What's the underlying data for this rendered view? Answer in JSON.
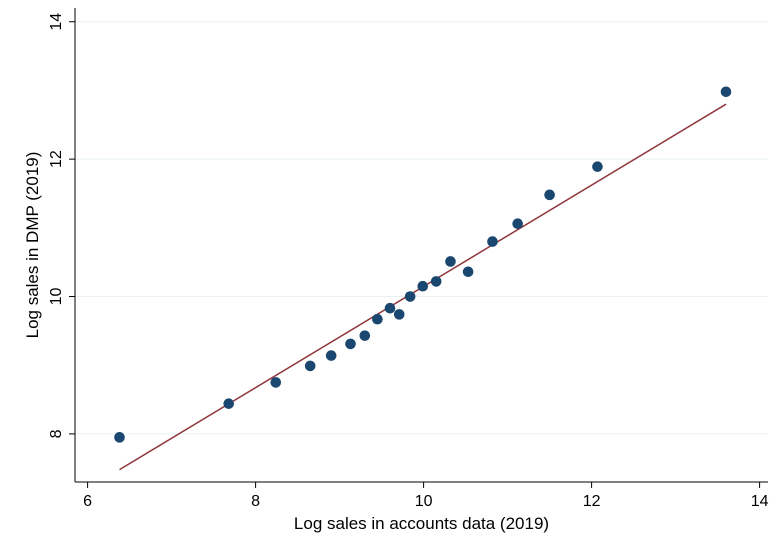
{
  "chart_data": {
    "type": "scatter",
    "title": "",
    "xlabel": "Log sales in accounts data (2019)",
    "ylabel": "Log sales in DMP (2019)",
    "xlim": [
      5.85,
      14.1
    ],
    "ylim": [
      7.3,
      14.2
    ],
    "xticks": [
      6,
      8,
      10,
      12,
      14
    ],
    "yticks": [
      8,
      10,
      12,
      14
    ],
    "grid": "horizontal",
    "legend": "none",
    "point_color": "#1a476f",
    "line_color": "#90353b",
    "points": [
      {
        "x": 6.38,
        "y": 7.95
      },
      {
        "x": 7.68,
        "y": 8.44
      },
      {
        "x": 8.24,
        "y": 8.75
      },
      {
        "x": 8.65,
        "y": 8.99
      },
      {
        "x": 8.9,
        "y": 9.14
      },
      {
        "x": 9.13,
        "y": 9.31
      },
      {
        "x": 9.3,
        "y": 9.43
      },
      {
        "x": 9.45,
        "y": 9.67
      },
      {
        "x": 9.6,
        "y": 9.83
      },
      {
        "x": 9.71,
        "y": 9.74
      },
      {
        "x": 9.84,
        "y": 10.0
      },
      {
        "x": 9.99,
        "y": 10.15
      },
      {
        "x": 10.15,
        "y": 10.22
      },
      {
        "x": 10.32,
        "y": 10.51
      },
      {
        "x": 10.53,
        "y": 10.36
      },
      {
        "x": 10.82,
        "y": 10.8
      },
      {
        "x": 11.12,
        "y": 11.06
      },
      {
        "x": 11.5,
        "y": 11.48
      },
      {
        "x": 12.07,
        "y": 11.89
      },
      {
        "x": 13.6,
        "y": 12.98
      }
    ],
    "fit_line": {
      "x": [
        6.38,
        13.6
      ],
      "y": [
        7.48,
        12.8
      ]
    }
  }
}
